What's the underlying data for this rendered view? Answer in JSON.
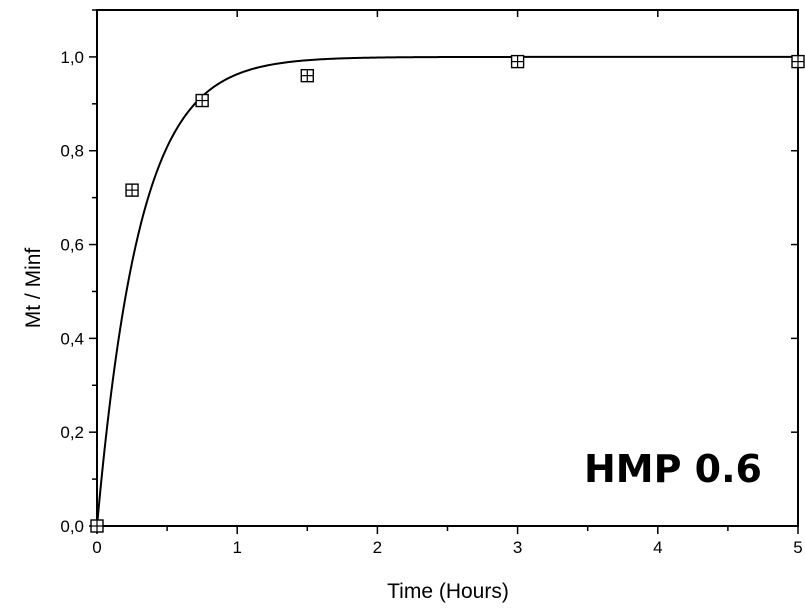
{
  "chart_data": {
    "type": "scatter",
    "annotation": "HMP 0.6",
    "xlabel": "Time (Hours)",
    "ylabel": "Mt / Minf",
    "xlim": [
      0,
      5
    ],
    "ylim": [
      0,
      1.1
    ],
    "x_ticks": [
      0,
      1,
      2,
      3,
      4,
      5
    ],
    "x_tick_labels": [
      "0",
      "1",
      "2",
      "3",
      "4",
      "5"
    ],
    "y_ticks": [
      0,
      0.2,
      0.4,
      0.6,
      0.8,
      1.0
    ],
    "y_tick_labels": [
      "0,0",
      "0,2",
      "0,4",
      "0,6",
      "0,8",
      "1,0"
    ],
    "grid": false,
    "points": [
      {
        "x": 0,
        "y": 0
      },
      {
        "x": 0.25,
        "y": 0.716
      },
      {
        "x": 0.75,
        "y": 0.907
      },
      {
        "x": 1.5,
        "y": 0.96
      },
      {
        "x": 3,
        "y": 0.99
      },
      {
        "x": 5,
        "y": 0.99
      }
    ],
    "fit": {
      "model": "1 - exp(-k*t)",
      "k": 3.3
    }
  }
}
